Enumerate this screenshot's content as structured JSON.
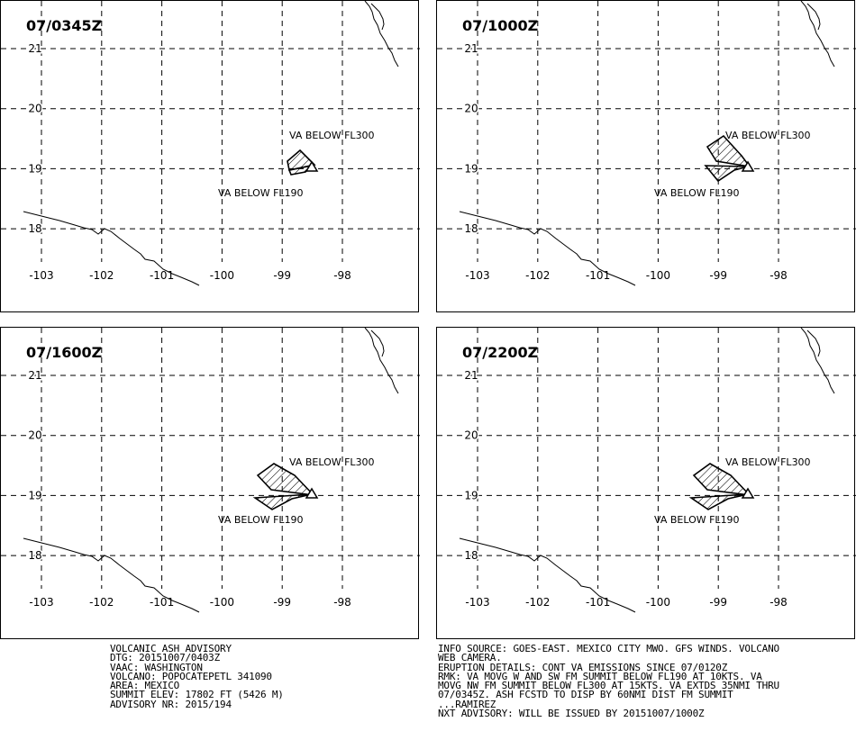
{
  "panels": [
    {
      "title": "07/0345Z",
      "upper_label": "VA BELOW FL300",
      "lower_label": "VA BELOW FL190",
      "stage": 0
    },
    {
      "title": "07/1000Z",
      "upper_label": "VA BELOW FL300",
      "lower_label": "VA BELOW FL190",
      "stage": 1
    },
    {
      "title": "07/1600Z",
      "upper_label": "VA BELOW FL300",
      "lower_label": "VA BELOW FL190",
      "stage": 2
    },
    {
      "title": "07/2200Z",
      "upper_label": "VA BELOW FL300",
      "lower_label": "VA BELOW FL190",
      "stage": 2
    }
  ],
  "axes": {
    "lon_ticks": [
      "-103",
      "-102",
      "-101",
      "-100",
      "-99",
      "-98"
    ],
    "lat_ticks": [
      "21",
      "20",
      "19",
      "18"
    ]
  },
  "advisory_left": [
    "VOLCANIC ASH ADVISORY",
    "DTG: 20151007/0403Z",
    "VAAC: WASHINGTON",
    "VOLCANO: POPOCATEPETL 341090",
    "AREA: MEXICO",
    "SUMMIT ELEV: 17802 FT (5426 M)",
    "ADVISORY NR: 2015/194"
  ],
  "advisory_right": [
    "INFO SOURCE: GOES-EAST. MEXICO CITY MWO. GFS WINDS. VOLCANO",
    "WEB CAMERA.",
    "ERUPTION DETAILS: CONT VA EMISSIONS SINCE 07/0120Z",
    "RMK: VA MOVG W AND SW FM SUMMIT BELOW FL190 AT 10KTS. VA",
    "MOVG NW FM SUMMIT BELOW FL300 AT 15KTS. VA EXTDS 35NMI THRU",
    "07/0345Z. ASH FCSTD TO DISP BY 60NMI DIST FM SUMMIT",
    "...RAMIREZ",
    "NXT ADVISORY: WILL BE ISSUED BY 20151007/1000Z"
  ]
}
